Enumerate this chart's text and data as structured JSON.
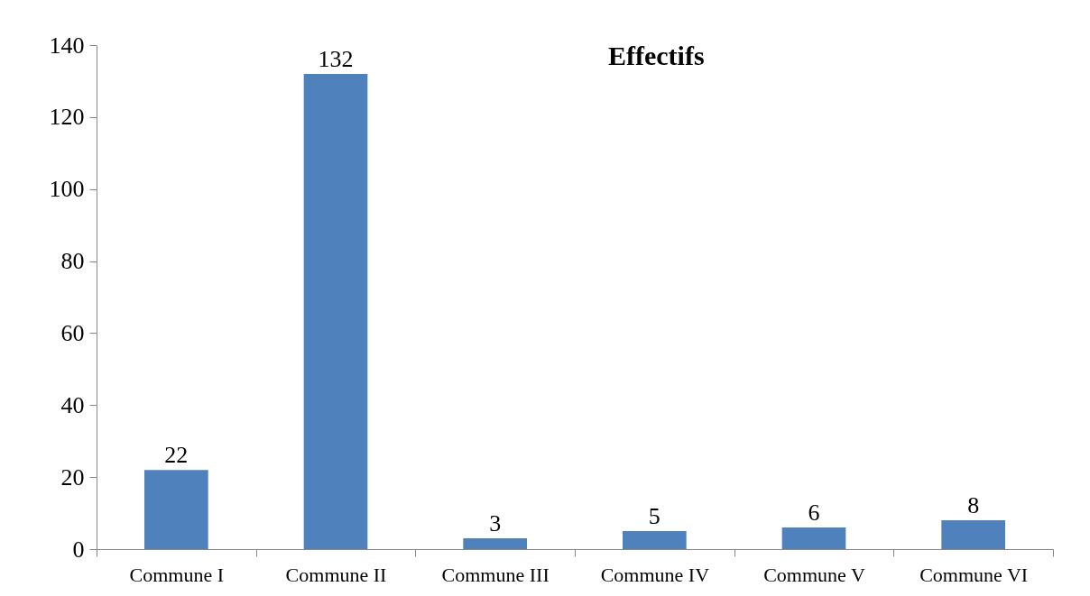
{
  "chart_data": {
    "type": "bar",
    "title": "Effectifs",
    "categories": [
      "Commune I",
      "Commune II",
      "Commune III",
      "Commune IV",
      "Commune V",
      "Commune VI"
    ],
    "values": [
      22,
      132,
      3,
      5,
      6,
      8
    ],
    "color": "#4f81bd",
    "ylim": [
      0,
      140
    ],
    "yticks": [
      0,
      20,
      40,
      60,
      80,
      100,
      120,
      140
    ],
    "grid": false,
    "data_labels": true
  }
}
